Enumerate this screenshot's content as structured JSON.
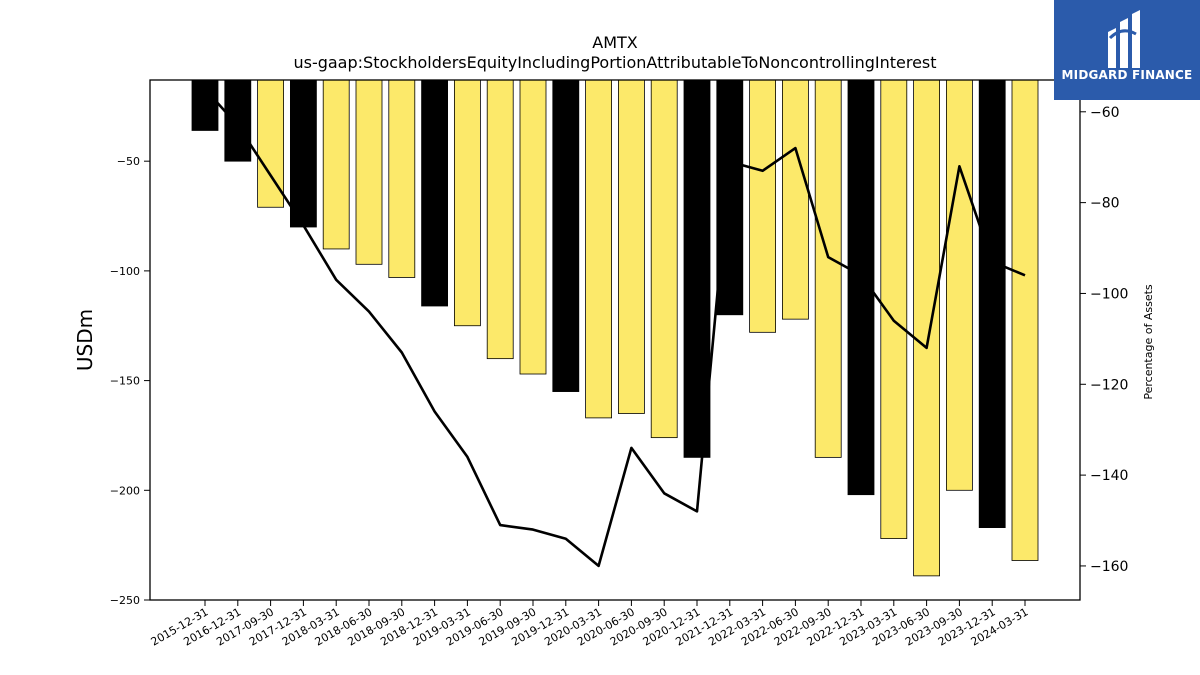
{
  "brand": {
    "name": "MIDGARD FINANCE",
    "background": "#2b5bab",
    "icon": "midgard-logo-icon"
  },
  "chart_data": {
    "type": "bar",
    "title": "AMTX",
    "subtitle": "us-gaap:StockholdersEquityIncludingPortionAttributableToNoncontrollingInterest",
    "ylabel": "USDm",
    "ylabel_right": "Percentage of Assets",
    "ylim": [
      -250,
      -13
    ],
    "ylim_right": [
      -167.5,
      -53
    ],
    "yticks": [
      -50,
      -100,
      -150,
      -200,
      -250
    ],
    "yticks_right": [
      -60,
      -80,
      -100,
      -120,
      -140,
      -160
    ],
    "colors": {
      "year_end": "#000000",
      "quarter": "#fce96a",
      "line": "#000000"
    },
    "categories": [
      "2015-12-31",
      "2016-12-31",
      "2017-09-30",
      "2017-12-31",
      "2018-03-31",
      "2018-06-30",
      "2018-09-30",
      "2018-12-31",
      "2019-03-31",
      "2019-06-30",
      "2019-09-30",
      "2019-12-31",
      "2020-03-31",
      "2020-06-30",
      "2020-09-30",
      "2020-12-31",
      "2021-12-31",
      "2022-03-31",
      "2022-06-30",
      "2022-09-30",
      "2022-12-31",
      "2023-03-31",
      "2023-06-30",
      "2023-09-30",
      "2023-12-31",
      "2024-03-31"
    ],
    "series": [
      {
        "kind": "bar",
        "values": [
          -36,
          -50,
          -71,
          -80,
          -90,
          -97,
          -103,
          -116,
          -125,
          -140,
          -147,
          -155,
          -167,
          -165,
          -176,
          -185,
          -120,
          -128,
          -122,
          -185,
          -202,
          -222,
          -239,
          -200,
          -217,
          -232
        ],
        "year_end": [
          true,
          true,
          false,
          true,
          false,
          false,
          false,
          true,
          false,
          false,
          false,
          true,
          false,
          false,
          false,
          true,
          true,
          false,
          false,
          false,
          true,
          false,
          false,
          false,
          true,
          false
        ]
      },
      {
        "kind": "line",
        "axis": "right",
        "values": [
          -55,
          -63,
          -74,
          -85,
          -97,
          -104,
          -113,
          -126,
          -136,
          -151,
          -152,
          -154,
          -160,
          -134,
          -144,
          -148,
          -71,
          -73,
          -68,
          -92,
          -96,
          -106,
          -112,
          -72,
          -93,
          -96
        ]
      }
    ]
  }
}
